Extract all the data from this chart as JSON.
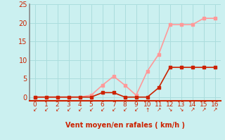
{
  "x": [
    0,
    1,
    2,
    3,
    4,
    5,
    6,
    7,
    8,
    9,
    10,
    11,
    12,
    13,
    14,
    15,
    16
  ],
  "rafales": [
    0,
    0,
    0,
    0,
    0,
    0.5,
    3.2,
    5.6,
    3.2,
    0.5,
    7,
    11.5,
    19.5,
    19.5,
    19.5,
    21.2,
    21.2
  ],
  "moyen": [
    0,
    0,
    0,
    0,
    0,
    0,
    1.2,
    1.2,
    0,
    0,
    0,
    2.5,
    8,
    8,
    8,
    8,
    8
  ],
  "color_rafales": "#FF9999",
  "color_moyen": "#CC2200",
  "bg_color": "#CBF0F0",
  "grid_color": "#AADDDD",
  "axis_color": "#CC2200",
  "spine_color": "#888888",
  "xlabel": "Vent moyen/en rafales ( km/h )",
  "xlim": [
    -0.5,
    16.5
  ],
  "ylim": [
    -1,
    25
  ],
  "yticks": [
    0,
    5,
    10,
    15,
    20,
    25
  ],
  "xticks": [
    0,
    1,
    2,
    3,
    4,
    5,
    6,
    7,
    8,
    9,
    10,
    11,
    12,
    13,
    14,
    15,
    16
  ],
  "arrows": [
    "↙",
    "↙",
    "↙",
    "↙",
    "↙",
    "↙",
    "↙",
    "↙",
    "↙",
    "↙",
    "↑",
    "↗",
    "↘",
    "↘",
    "↗",
    "↗",
    "↗"
  ],
  "marker_size": 3,
  "linewidth": 1.2
}
